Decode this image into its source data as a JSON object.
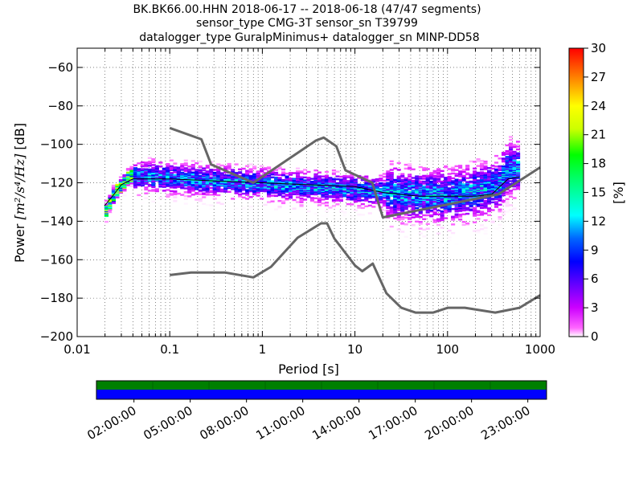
{
  "title": {
    "line1": "BK.BK66.00.HHN   2018-06-17 -- 2018-06-18  (47/47 segments)",
    "line2": "sensor_type CMG-3T sensor_sn T39799",
    "line3": "datalogger_type GuralpMinimus+ datalogger_sn MINP-DD58"
  },
  "chart_data": {
    "type": "heatmap",
    "xlabel": "Period [s]",
    "ylabel_prefix": "Power ",
    "ylabel_units": "[m²/s⁴/Hz]",
    "ylabel_suffix": " [dB]",
    "xscale": "log",
    "xlim": [
      0.01,
      1000
    ],
    "ylim": [
      -200,
      -50
    ],
    "xticks": [
      {
        "value": 0.01,
        "label": "0.01"
      },
      {
        "value": 0.1,
        "label": "0.1"
      },
      {
        "value": 1,
        "label": "1"
      },
      {
        "value": 10,
        "label": "10"
      },
      {
        "value": 100,
        "label": "100"
      },
      {
        "value": 1000,
        "label": "1000"
      }
    ],
    "yticks": [
      -200,
      -180,
      -160,
      -140,
      -120,
      -100,
      -80,
      -60
    ],
    "grid": "dotted vertical at decade subdivisions, dotted horizontal at y ticks",
    "colorbar": {
      "label": "[%]",
      "min": 0,
      "max": 30,
      "ticks": [
        0,
        3,
        6,
        9,
        12,
        15,
        18,
        21,
        24,
        27,
        30
      ],
      "colormap": "pqlx (white, magenta, purple, blue, cyan, green, yellow, orange, red)"
    },
    "noise_model_high": [
      [
        0.1,
        -91.5
      ],
      [
        0.22,
        -97.4
      ],
      [
        0.28,
        -110.5
      ],
      [
        0.8,
        -120
      ],
      [
        3.8,
        -98
      ],
      [
        4.6,
        -96.5
      ],
      [
        6.3,
        -101
      ],
      [
        7.9,
        -113.5
      ],
      [
        15.4,
        -120
      ],
      [
        20,
        -138
      ],
      [
        354,
        -126
      ],
      [
        1000,
        -112
      ]
    ],
    "noise_model_low": [
      [
        0.1,
        -168
      ],
      [
        0.17,
        -166.7
      ],
      [
        0.4,
        -166.7
      ],
      [
        0.8,
        -169.2
      ],
      [
        1.24,
        -163.7
      ],
      [
        2.4,
        -148.6
      ],
      [
        4.3,
        -141.1
      ],
      [
        5,
        -141.1
      ],
      [
        6,
        -149
      ],
      [
        10,
        -163
      ],
      [
        12,
        -166
      ],
      [
        15.6,
        -162
      ],
      [
        21.9,
        -177.5
      ],
      [
        31.6,
        -185
      ],
      [
        45,
        -187.5
      ],
      [
        70,
        -187.5
      ],
      [
        101,
        -185
      ],
      [
        154,
        -185
      ],
      [
        328,
        -187.5
      ],
      [
        600,
        -185
      ],
      [
        1000,
        -178.5
      ]
    ],
    "mode_curve": [
      [
        0.0197,
        -134
      ],
      [
        0.023,
        -127
      ],
      [
        0.026,
        -123
      ],
      [
        0.03,
        -120
      ],
      [
        0.035,
        -116
      ],
      [
        0.05,
        -116
      ],
      [
        0.1,
        -117
      ],
      [
        0.2,
        -118
      ],
      [
        0.5,
        -119
      ],
      [
        1,
        -120
      ],
      [
        2,
        -121
      ],
      [
        5,
        -122
      ],
      [
        10,
        -123
      ],
      [
        20,
        -124
      ],
      [
        30,
        -125
      ],
      [
        50,
        -126
      ],
      [
        100,
        -126
      ],
      [
        200,
        -124
      ],
      [
        350,
        -120
      ],
      [
        420,
        -112
      ],
      [
        600,
        -111
      ]
    ],
    "mean_curve": [
      [
        0.0197,
        -132
      ],
      [
        0.025,
        -126
      ],
      [
        0.03,
        -121
      ],
      [
        0.04,
        -118
      ],
      [
        0.1,
        -118
      ],
      [
        0.3,
        -119
      ],
      [
        1,
        -120
      ],
      [
        3,
        -121
      ],
      [
        10,
        -122
      ],
      [
        20,
        -125
      ],
      [
        30,
        -126
      ],
      [
        50,
        -127
      ],
      [
        100,
        -127
      ],
      [
        200,
        -127
      ],
      [
        300,
        -126
      ],
      [
        450,
        -118
      ],
      [
        600,
        -117
      ]
    ]
  },
  "timeline": {
    "ticks": [
      "02:00:00",
      "05:00:00",
      "08:00:00",
      "11:00:00",
      "14:00:00",
      "17:00:00",
      "20:00:00",
      "23:00:00"
    ],
    "coverage_color": "#007f00",
    "segments_color": "#0000ff"
  }
}
